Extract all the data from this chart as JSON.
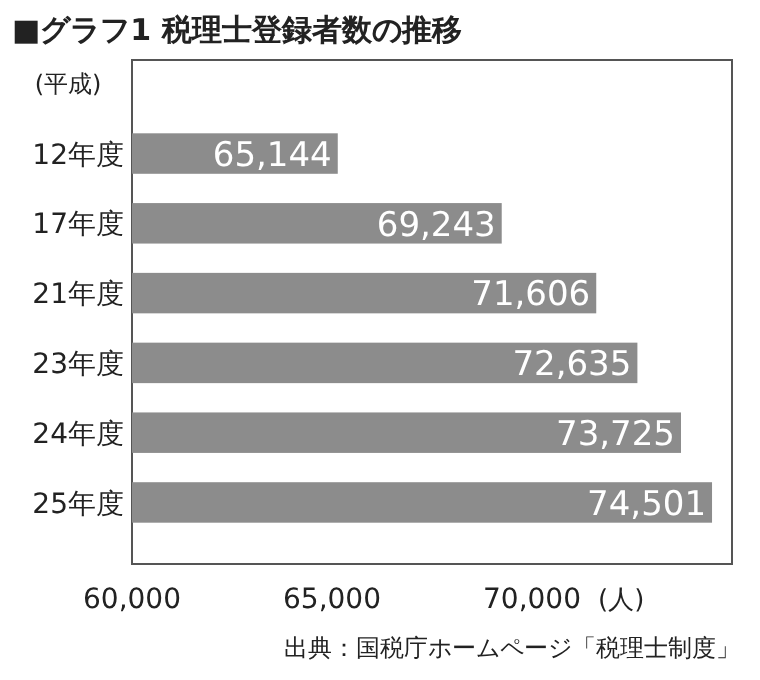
{
  "chart_data": {
    "type": "bar",
    "orientation": "horizontal",
    "title": "■グラフ1 税理士登録者数の推移",
    "categories": [
      "12年度",
      "17年度",
      "21年度",
      "23年度",
      "24年度",
      "25年度"
    ],
    "values": [
      65144,
      69243,
      71606,
      72635,
      73725,
      74501
    ],
    "color": "#8c8c8c",
    "xlim": [
      60000,
      75000
    ],
    "xticks": [
      {
        "value": 60000,
        "label": "60,000"
      },
      {
        "value": 65000,
        "label": "65,000"
      },
      {
        "value": 70000,
        "label": "70,000"
      }
    ],
    "value_labels": [
      "65,144",
      "69,243",
      "71,606",
      "72,635",
      "73,725",
      "74,501"
    ],
    "xlabel": "(人)",
    "ylabel": "(平成)",
    "grid": false,
    "annotations": [
      "出典：国税庁ホームページ「税理士制度」"
    ]
  }
}
